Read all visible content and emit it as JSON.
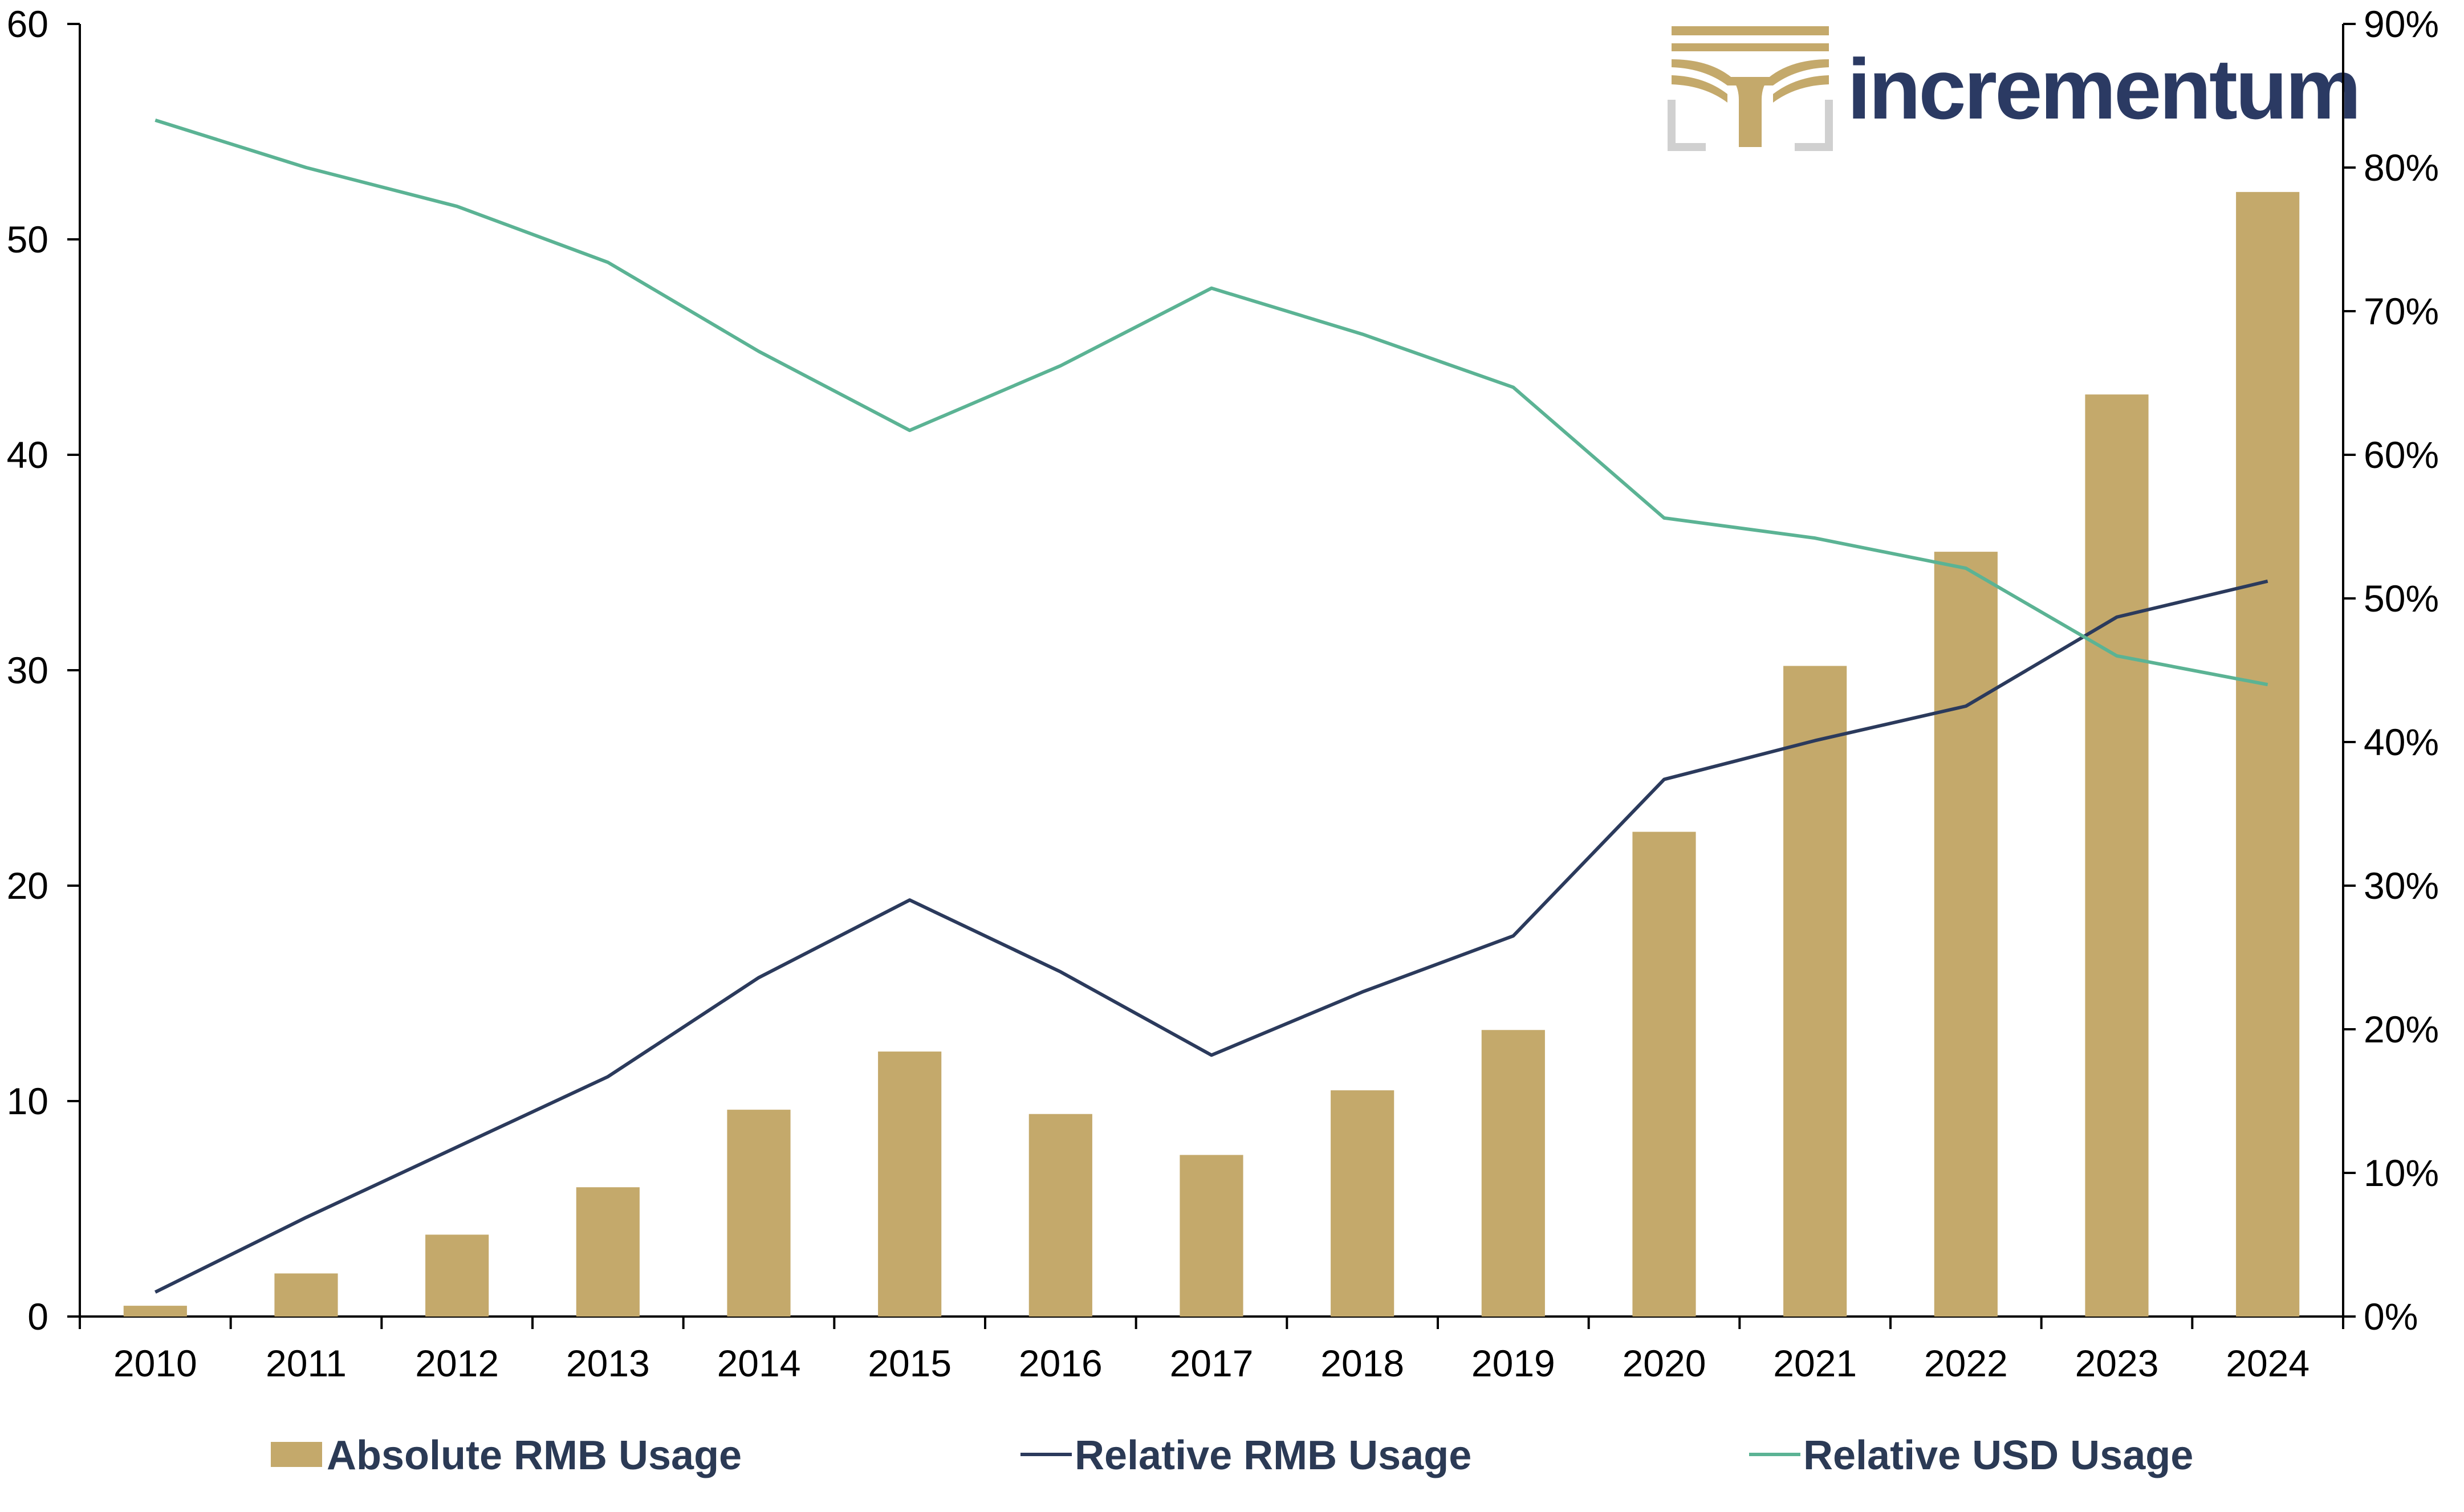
{
  "brand": {
    "name": "incrementum",
    "colors": {
      "gold": "#c4a96b",
      "navy": "#2b3a63",
      "gray": "#d0d0d0"
    }
  },
  "chart_data": {
    "type": "bar",
    "title": "",
    "xlabel": "",
    "ylabel": "",
    "categories": [
      "2010",
      "2011",
      "2012",
      "2013",
      "2014",
      "2015",
      "2016",
      "2017",
      "2018",
      "2019",
      "2020",
      "2021",
      "2022",
      "2023",
      "2024"
    ],
    "y_left": {
      "range": [
        0,
        60
      ],
      "ticks": [
        "0",
        "10",
        "20",
        "30",
        "40",
        "50",
        "60"
      ]
    },
    "y_right": {
      "range": [
        0,
        0.9
      ],
      "ticks": [
        "0%",
        "10%",
        "20%",
        "30%",
        "40%",
        "50%",
        "60%",
        "70%",
        "80%",
        "90%"
      ]
    },
    "grid": false,
    "legend_position": "bottom",
    "series": [
      {
        "name": "Absolute RMB Usage",
        "type": "bar",
        "axis": "left",
        "color": "#c4a96b",
        "values": [
          0.5,
          2.0,
          3.8,
          6.0,
          9.6,
          12.3,
          9.4,
          7.5,
          10.5,
          13.3,
          22.5,
          30.2,
          35.5,
          42.8,
          52.2
        ]
      },
      {
        "name": "Relative RMB Usage",
        "type": "line",
        "axis": "right",
        "color": "#2b3a5c",
        "values": [
          0.017,
          0.069,
          0.118,
          0.167,
          0.236,
          0.29,
          0.24,
          0.182,
          0.226,
          0.265,
          0.374,
          0.401,
          0.425,
          0.487,
          0.512
        ]
      },
      {
        "name": "Relative USD Usage",
        "type": "line",
        "axis": "right",
        "color": "#5bb394",
        "values": [
          0.833,
          0.8,
          0.773,
          0.734,
          0.672,
          0.617,
          0.662,
          0.716,
          0.684,
          0.647,
          0.556,
          0.542,
          0.521,
          0.46,
          0.44
        ]
      }
    ]
  }
}
